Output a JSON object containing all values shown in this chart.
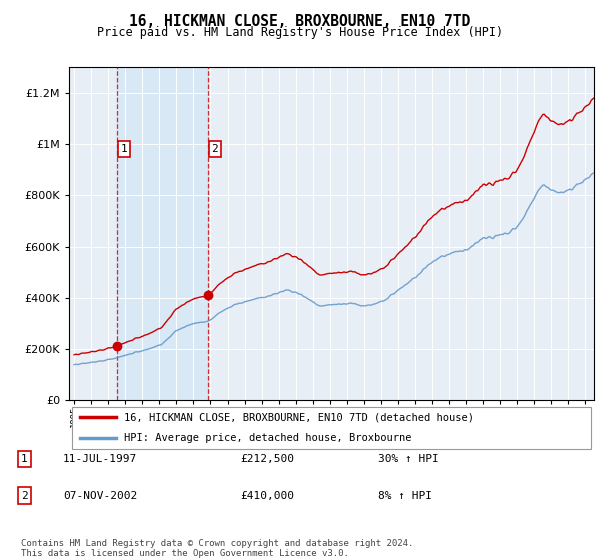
{
  "title": "16, HICKMAN CLOSE, BROXBOURNE, EN10 7TD",
  "subtitle": "Price paid vs. HM Land Registry's House Price Index (HPI)",
  "ylim": [
    0,
    1300000
  ],
  "yticks": [
    0,
    200000,
    400000,
    600000,
    800000,
    1000000,
    1200000
  ],
  "ytick_labels": [
    "£0",
    "£200K",
    "£400K",
    "£600K",
    "£800K",
    "£1M",
    "£1.2M"
  ],
  "sale1_date_num": 1997.53,
  "sale1_price": 212500,
  "sale1_label": "1",
  "sale1_date_str": "11-JUL-1997",
  "sale1_price_str": "£212,500",
  "sale1_hpi_str": "30% ↑ HPI",
  "sale2_date_num": 2002.85,
  "sale2_price": 410000,
  "sale2_label": "2",
  "sale2_date_str": "07-NOV-2002",
  "sale2_price_str": "£410,000",
  "sale2_hpi_str": "8% ↑ HPI",
  "line1_color": "#cc0000",
  "line2_color": "#6699cc",
  "shading_color": "#d8e8f5",
  "bg_color": "#f0f0f0",
  "plot_bg": "#e8eef5",
  "grid_color": "#ffffff",
  "legend_label1": "16, HICKMAN CLOSE, BROXBOURNE, EN10 7TD (detached house)",
  "legend_label2": "HPI: Average price, detached house, Broxbourne",
  "footer": "Contains HM Land Registry data © Crown copyright and database right 2024.\nThis data is licensed under the Open Government Licence v3.0.",
  "xmin": 1994.7,
  "xmax": 2025.5
}
